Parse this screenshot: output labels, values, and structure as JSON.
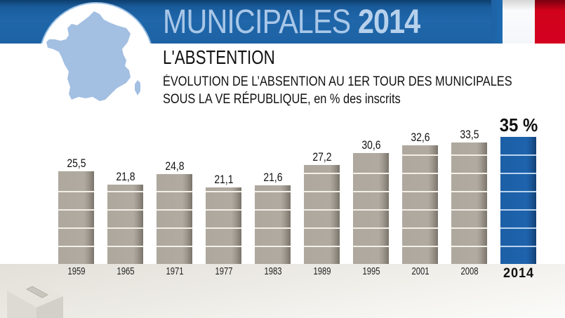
{
  "header": {
    "title_light": "MUNICIPALES",
    "title_bold": "2014",
    "subtitle": "L'ABSTENTION",
    "description_line1": "ÉVOLUTION DE L’ABSENTION AU 1ER TOUR DES MUNICIPALES",
    "description_line2": "SOUS LA VE RÉPUBLIQUE, en % des inscrits"
  },
  "icons": {
    "map": "france-map-icon",
    "flag": "french-flag-icon",
    "ballot_box": "ballot-box-icon"
  },
  "colors": {
    "banner": "#1d62a4",
    "bar_default": "#aea89e",
    "bar_highlight": "#1e63ad",
    "flag_blue": "#1f6ab0",
    "flag_white": "#f4f6fa",
    "flag_red": "#d40020"
  },
  "chart_data": {
    "type": "bar",
    "title": "ÉVOLUTION DE L’ABSENTION AU 1ER TOUR DES MUNICIPALES SOUS LA VE RÉPUBLIQUE, en % des inscrits",
    "xlabel": "",
    "ylabel": "% des inscrits",
    "ylim": [
      0,
      35
    ],
    "grid": false,
    "categories": [
      "1959",
      "1965",
      "1971",
      "1977",
      "1983",
      "1989",
      "1995",
      "2001",
      "2008",
      "2014"
    ],
    "values": [
      25.5,
      21.8,
      24.8,
      21.1,
      21.6,
      27.2,
      30.6,
      32.6,
      33.5,
      35
    ],
    "value_labels": [
      "25,5",
      "21,8",
      "24,8",
      "21,1",
      "21,6",
      "27,2",
      "30,6",
      "32,6",
      "33,5",
      "35 %"
    ],
    "highlight_index": 9
  }
}
